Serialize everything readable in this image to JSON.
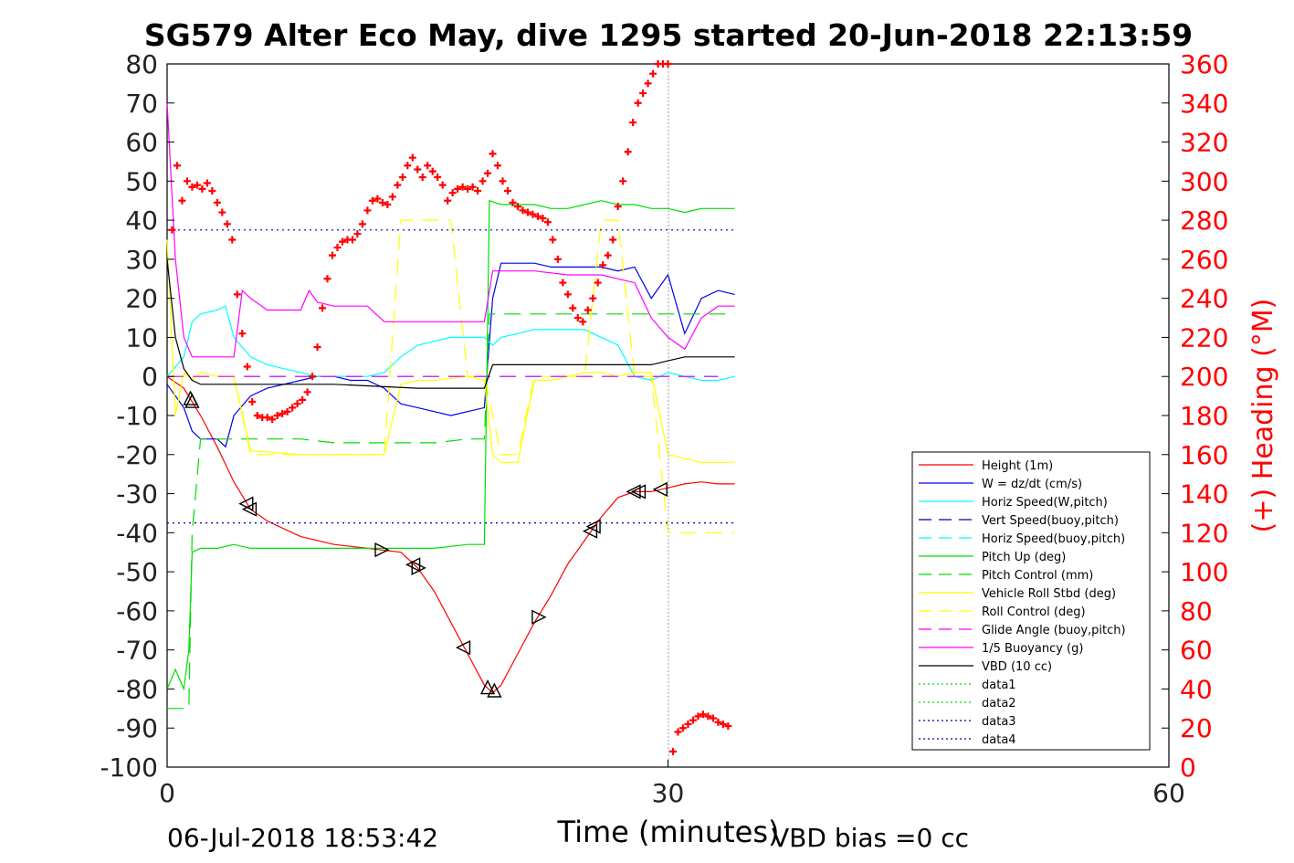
{
  "chart_data": {
    "type": "line",
    "title": "SG579 Alter Eco May, dive 1295 started 20-Jun-2018 22:13:59",
    "xlabel": "Time (minutes)",
    "ylabel": "",
    "ylabel_right": "(+) Heading (°M)",
    "xlim": [
      0,
      60
    ],
    "ylim": [
      -100,
      80
    ],
    "ylim_right": [
      0,
      360
    ],
    "x_ticks": [
      "0",
      "30",
      "60"
    ],
    "y_ticks": [
      "80",
      "70",
      "60",
      "50",
      "40",
      "30",
      "20",
      "10",
      "0",
      "-10",
      "-20",
      "-30",
      "-40",
      "-50",
      "-60",
      "-70",
      "-80",
      "-90",
      "-100"
    ],
    "y_right_ticks": [
      "360",
      "340",
      "320",
      "300",
      "280",
      "260",
      "240",
      "220",
      "200",
      "180",
      "160",
      "140",
      "120",
      "100",
      "80",
      "60",
      "40",
      "20",
      "0"
    ],
    "grid": false,
    "legend_placement": "bottom-right",
    "colors": {
      "red": "#ff0000",
      "blue": "#0000ee",
      "cyan": "#00ffff",
      "green": "#00dd00",
      "yellow": "#ffff00",
      "magenta": "#ff00ff",
      "black": "#000000",
      "navy": "#0000aa"
    },
    "series": [
      {
        "name": "Height (1m)",
        "color": "#ff0000",
        "style": "solid",
        "x": [
          0,
          1,
          2,
          3,
          4,
          5,
          6,
          7,
          8,
          10,
          12,
          14,
          15,
          16,
          17,
          18,
          19,
          19.5,
          20,
          21,
          22,
          23,
          24,
          25,
          26,
          27,
          28,
          29,
          30,
          31,
          32,
          33,
          34
        ],
        "y": [
          0,
          -3,
          -10,
          -18,
          -27,
          -34,
          -37,
          -39,
          -41,
          -43,
          -44,
          -45,
          -49,
          -55,
          -63,
          -71,
          -79,
          -81,
          -79,
          -71,
          -63,
          -56,
          -48,
          -42,
          -36,
          -31,
          -29.5,
          -29.5,
          -28.5,
          -27.5,
          -27,
          -27.5,
          -27.5
        ]
      },
      {
        "name": "W = dz/dt (cm/s)",
        "color": "#0000ee",
        "style": "solid",
        "x": [
          0,
          1,
          1.5,
          2,
          3,
          3.5,
          4,
          5,
          6,
          8,
          9,
          10,
          11,
          12,
          13,
          14,
          15,
          16,
          17,
          18,
          19,
          19.5,
          20,
          21,
          22,
          23,
          24,
          25,
          26,
          27,
          28,
          29,
          30,
          31,
          32,
          33,
          34
        ],
        "y": [
          -2,
          -8,
          -14,
          -16,
          -16,
          -18,
          -10,
          -5,
          -3,
          -1,
          0,
          0,
          -1,
          -1,
          -3,
          -7,
          -8,
          -9,
          -10,
          -9,
          -8,
          20,
          29,
          29,
          29,
          28,
          28,
          28,
          28,
          27,
          28,
          20,
          26,
          11,
          20,
          22,
          21
        ]
      },
      {
        "name": "Horiz Speed(W,pitch)",
        "color": "#00ffff",
        "style": "solid",
        "x": [
          0,
          1,
          1.5,
          2,
          3,
          3.5,
          4,
          5,
          6,
          8,
          9,
          10,
          11,
          12,
          13,
          14,
          15,
          16,
          17,
          18,
          19,
          19.5,
          20,
          21,
          22,
          23,
          24,
          25,
          26,
          27,
          28,
          29,
          30,
          31,
          32,
          33,
          34
        ],
        "y": [
          0,
          5,
          14,
          16,
          17,
          18,
          10,
          5,
          3,
          1,
          0,
          0,
          0,
          0,
          1,
          5,
          8,
          9,
          10,
          10,
          10,
          8,
          10,
          11,
          12,
          12,
          12,
          12,
          10,
          8,
          0,
          -1,
          1,
          0,
          -1,
          -1,
          0
        ]
      },
      {
        "name": "Vert Speed(buoy,pitch)",
        "color": "#0000aa",
        "style": "dashed",
        "x": [
          0,
          33
        ],
        "y": [
          0,
          0
        ]
      },
      {
        "name": "Horiz Speed(buoy,pitch)",
        "color": "#00ffff",
        "style": "dashed",
        "x": [
          0,
          33
        ],
        "y": [
          0,
          0
        ]
      },
      {
        "name": "Pitch Up (deg)",
        "color": "#00dd00",
        "style": "solid",
        "x": [
          0,
          0.5,
          1,
          1.3,
          1.5,
          2,
          3,
          4,
          5,
          8,
          10,
          12,
          14,
          16,
          18,
          19,
          19.3,
          20,
          21,
          22,
          23,
          24,
          25,
          26,
          27,
          28,
          29,
          30,
          31,
          32,
          33,
          34
        ],
        "y": [
          -80,
          -75,
          -80,
          -70,
          -45,
          -44,
          -44,
          -43,
          -44,
          -44,
          -44,
          -44,
          -44,
          -44,
          -43,
          -43,
          45,
          44,
          44,
          44,
          43,
          43,
          44,
          45,
          44,
          44,
          43,
          43,
          42,
          43,
          43,
          43
        ],
        "extra": []
      },
      {
        "name": "Pitch Control (mm)",
        "color": "#00dd00",
        "style": "dashed",
        "x": [
          0,
          1.3,
          1.5,
          2,
          3,
          4,
          5,
          8,
          10,
          12,
          14,
          16,
          18,
          19,
          19.3,
          20,
          25,
          30,
          34
        ],
        "y": [
          -85,
          -85,
          -40,
          -16,
          -16,
          -16,
          -16,
          -16,
          -17,
          -17,
          -17,
          -17,
          -16,
          -16,
          16,
          16,
          16,
          16,
          16
        ]
      },
      {
        "name": "Vehicle Roll Stbd (deg)",
        "color": "#ffff00",
        "style": "solid",
        "x": [
          0,
          0.5,
          1,
          1.5,
          2,
          3,
          4,
          5,
          8,
          10,
          12,
          13,
          14,
          15,
          16,
          18,
          19,
          19.5,
          20,
          21,
          22,
          23,
          24,
          25,
          26,
          27,
          28,
          29,
          30,
          31,
          32,
          34
        ],
        "y": [
          35,
          -10,
          1,
          -1,
          1,
          0,
          0,
          -19,
          -20,
          -20,
          -20,
          -20,
          -2,
          -1,
          -1,
          0,
          -1,
          -20,
          -22,
          -22,
          -1,
          -1,
          0,
          1,
          1,
          0,
          1,
          1,
          -20,
          -21,
          -22,
          -22
        ]
      },
      {
        "name": "Roll Control (deg)",
        "color": "#ffff00",
        "style": "dashed",
        "x": [
          0,
          1,
          2,
          3,
          4,
          5,
          8,
          10,
          12,
          13,
          14,
          15,
          16,
          17,
          18,
          19,
          20,
          21,
          22,
          25,
          26,
          27,
          28,
          29,
          30,
          32,
          34
        ],
        "y": [
          0,
          0,
          0,
          0,
          0,
          -20,
          -20,
          -20,
          -20,
          -20,
          40,
          40,
          40,
          40,
          0,
          0,
          -20,
          -20,
          0,
          0,
          40,
          40,
          0,
          0,
          -40,
          -40,
          -40
        ]
      },
      {
        "name": "Glide Angle (buoy,pitch)",
        "color": "#ff00ff",
        "style": "dashed",
        "x": [
          0,
          33
        ],
        "y": [
          0,
          0
        ]
      },
      {
        "name": "1/5 Buoyancy (g)",
        "color": "#ff00ff",
        "style": "solid",
        "x": [
          0,
          0.5,
          1,
          1.5,
          2,
          3,
          4,
          4.5,
          5,
          6,
          8,
          8.5,
          9,
          10,
          12,
          13,
          14,
          16,
          18,
          19,
          19.5,
          20,
          22,
          24,
          25,
          26,
          27,
          28,
          29,
          30,
          31,
          32,
          33,
          34
        ],
        "y": [
          70,
          30,
          10,
          5,
          5,
          5,
          5,
          22,
          20,
          17,
          17,
          22,
          19,
          18,
          18,
          14,
          14,
          14,
          14,
          14,
          27,
          27,
          27,
          26,
          26,
          26,
          25,
          24,
          15,
          10,
          7,
          15,
          18,
          18
        ]
      },
      {
        "name": "VBD (10 cc)",
        "color": "#000000",
        "style": "solid",
        "x": [
          0,
          0.5,
          1,
          1.5,
          2,
          5,
          10,
          15,
          18,
          19,
          19.5,
          20,
          25,
          28,
          29,
          30,
          31,
          34
        ],
        "y": [
          30,
          10,
          2,
          -1,
          -2,
          -2,
          -2,
          -3,
          -3,
          -3,
          3,
          3,
          3,
          3,
          3,
          4,
          5,
          5
        ]
      },
      {
        "name": "data1",
        "color": "#00dd00",
        "style": "dotted",
        "x": [],
        "y": []
      },
      {
        "name": "data2",
        "color": "#00dd00",
        "style": "dotted",
        "x": [],
        "y": []
      },
      {
        "name": "data3",
        "color": "#0000aa",
        "style": "dotted",
        "x": [
          0,
          34
        ],
        "y": [
          37.5,
          37.5
        ]
      },
      {
        "name": "data4",
        "color": "#0000aa",
        "style": "dotted",
        "x": [
          0,
          34
        ],
        "y": [
          -37.5,
          -37.5
        ]
      }
    ],
    "heading_points": {
      "color": "#ff0000",
      "x": [
        0.3,
        0.6,
        0.9,
        1.2,
        1.5,
        1.8,
        2.1,
        2.4,
        2.7,
        3.0,
        3.3,
        3.6,
        3.9,
        4.2,
        4.5,
        4.8,
        5.1,
        5.4,
        5.7,
        6.0,
        6.3,
        6.6,
        6.9,
        7.2,
        7.5,
        7.8,
        8.1,
        8.4,
        8.7,
        9.0,
        9.3,
        9.6,
        9.9,
        10.2,
        10.5,
        10.8,
        11.1,
        11.4,
        11.7,
        12.0,
        12.3,
        12.6,
        12.9,
        13.2,
        13.5,
        13.8,
        14.1,
        14.4,
        14.7,
        15.0,
        15.3,
        15.6,
        15.9,
        16.2,
        16.5,
        16.8,
        17.1,
        17.4,
        17.7,
        18.0,
        18.3,
        18.6,
        18.9,
        19.2,
        19.5,
        19.8,
        20.1,
        20.4,
        20.7,
        21.0,
        21.3,
        21.6,
        21.9,
        22.2,
        22.5,
        22.8,
        23.1,
        23.4,
        23.7,
        24.0,
        24.3,
        24.6,
        24.9,
        25.2,
        25.5,
        25.8,
        26.1,
        26.4,
        26.7,
        27.0,
        27.3,
        27.6,
        27.9,
        28.2,
        28.5,
        28.8,
        29.1,
        29.4,
        29.7,
        30.0,
        30.3,
        30.6,
        30.9,
        31.2,
        31.5,
        31.8,
        32.1,
        32.4,
        32.7,
        33.0,
        33.3,
        33.6
      ],
      "y": [
        275,
        308,
        290,
        300,
        297,
        298,
        296,
        299,
        295,
        289,
        284,
        278,
        270,
        242,
        222,
        205,
        187,
        180,
        179,
        179,
        178,
        180,
        181,
        182,
        184,
        186,
        188,
        192,
        200,
        215,
        235,
        250,
        262,
        266,
        269,
        270,
        270,
        273,
        278,
        285,
        290,
        291,
        289,
        288,
        292,
        298,
        302,
        308,
        312,
        306,
        302,
        308,
        305,
        302,
        298,
        290,
        294,
        296,
        297,
        296,
        297,
        295,
        300,
        304,
        314,
        308,
        300,
        295,
        289,
        287,
        285,
        284,
        283,
        282,
        281,
        279,
        270,
        260,
        248,
        242,
        235,
        230,
        228,
        234,
        240,
        248,
        257,
        262,
        270,
        287,
        300,
        315,
        330,
        340,
        345,
        350,
        355,
        360,
        360,
        362,
        8,
        18,
        20,
        22,
        24,
        26,
        27,
        26,
        25,
        23,
        22,
        21
      ]
    }
  },
  "legend": {
    "entries": [
      "Height (1m)",
      "W = dz/dt (cm/s)",
      "Horiz Speed(W,pitch)",
      "Vert Speed(buoy,pitch)",
      "Horiz Speed(buoy,pitch)",
      "Pitch Up (deg)",
      "Pitch Control (mm)",
      "Vehicle Roll Stbd (deg)",
      "Roll Control (deg)",
      "Glide Angle (buoy,pitch)",
      "1/5 Buoyancy (g)",
      "VBD (10 cc)",
      "data1",
      "data2",
      "data3",
      "data4"
    ]
  },
  "footer": {
    "date": "06-Jul-2018 18:53:42",
    "vbd_bias": "VBD bias =0 cc"
  }
}
